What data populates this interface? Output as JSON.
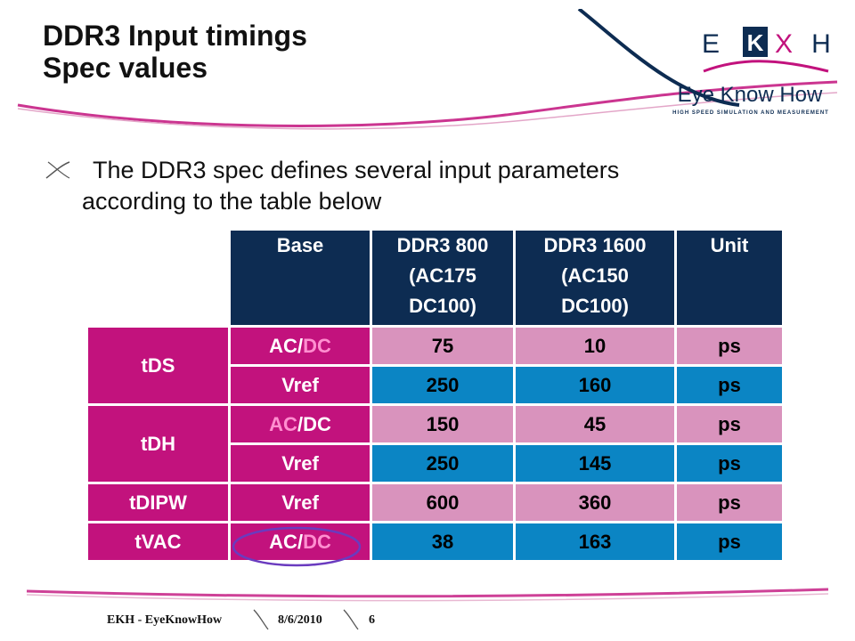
{
  "slide": {
    "title_line1": "DDR3 Input timings",
    "title_line2": "Spec values",
    "bullet_line1": "The DDR3 spec defines several input parameters",
    "bullet_line2": "according to the table below"
  },
  "logo": {
    "letters": [
      "E",
      "K",
      "X",
      "H"
    ],
    "name": "Eye Know How",
    "tagline": "HIGH SPEED SIMULATION AND MEASUREMENT"
  },
  "table": {
    "headers": {
      "base": "Base",
      "ddr3_800": [
        "DDR3 800",
        "(AC175",
        "DC100)"
      ],
      "ddr3_1600": [
        "DDR3 1600",
        "(AC150",
        "DC100)"
      ],
      "unit": "Unit"
    },
    "groups": [
      "tDS",
      "tDH",
      "tDIPW",
      "tVAC"
    ],
    "rows": [
      {
        "base": "AC/DC",
        "ddr3_800": "75",
        "ddr3_1600": "10",
        "unit": "ps"
      },
      {
        "base": "Vref",
        "ddr3_800": "250",
        "ddr3_1600": "160",
        "unit": "ps"
      },
      {
        "base": "AC/DC",
        "ddr3_800": "150",
        "ddr3_1600": "45",
        "unit": "ps"
      },
      {
        "base": "Vref",
        "ddr3_800": "250",
        "ddr3_1600": "145",
        "unit": "ps"
      },
      {
        "base": "Vref",
        "ddr3_800": "600",
        "ddr3_1600": "360",
        "unit": "ps"
      },
      {
        "base": "AC/DC",
        "ddr3_800": "38",
        "ddr3_1600": "163",
        "unit": "ps"
      }
    ],
    "base_parts": {
      "ac": "AC",
      "slash": "/",
      "dc": "DC"
    }
  },
  "footer": {
    "company": "EKH - EyeKnowHow",
    "date": "8/6/2010",
    "page": "6"
  },
  "colors": {
    "header_navy": "#0d2c52",
    "magenta": "#c2127d",
    "pink_cell": "#d993bd",
    "blue_cell": "#0b85c4",
    "dc_highlight": "#ff8fd0",
    "ellipse": "#6a3bbf"
  }
}
